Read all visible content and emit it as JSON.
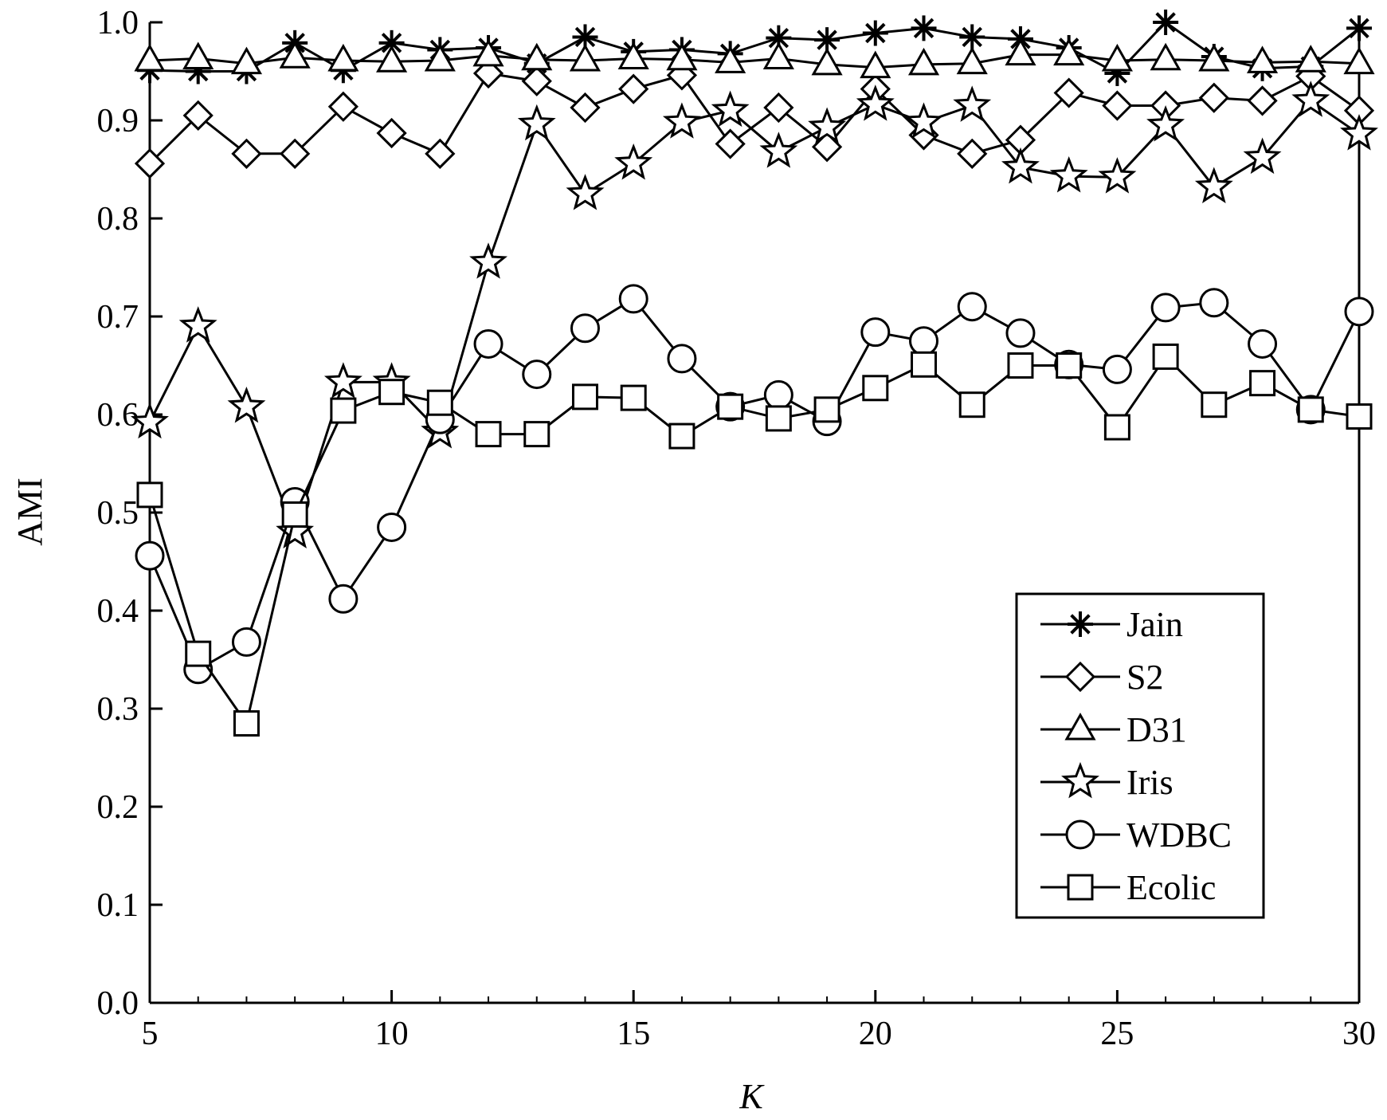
{
  "chart_data": {
    "type": "line",
    "title": "",
    "xlabel": "K",
    "ylabel": "AMI",
    "xlim": [
      5,
      30
    ],
    "ylim": [
      0.0,
      1.0
    ],
    "xticks": [
      "5",
      "10",
      "15",
      "20",
      "25",
      "30"
    ],
    "yticks": [
      "0.0",
      "0.1",
      "0.2",
      "0.3",
      "0.4",
      "0.5",
      "0.6",
      "0.7",
      "0.8",
      "0.9",
      "1.0"
    ],
    "grid": false,
    "legend_position": "lower-right",
    "x": [
      5,
      6,
      7,
      8,
      9,
      10,
      11,
      12,
      13,
      14,
      15,
      16,
      17,
      18,
      19,
      20,
      21,
      22,
      23,
      24,
      25,
      26,
      27,
      28,
      29,
      30
    ],
    "series": [
      {
        "name": "Jain",
        "marker": "asterisk",
        "values": [
          0.951,
          0.95,
          0.95,
          0.979,
          0.951,
          0.979,
          0.972,
          0.974,
          0.958,
          0.985,
          0.97,
          0.972,
          0.968,
          0.984,
          0.982,
          0.989,
          0.994,
          0.985,
          0.983,
          0.974,
          0.948,
          1.0,
          0.965,
          0.953,
          0.955,
          0.994
        ]
      },
      {
        "name": "S2",
        "marker": "diamond",
        "values": [
          0.856,
          0.905,
          0.866,
          0.866,
          0.914,
          0.887,
          0.866,
          0.948,
          0.94,
          0.913,
          0.932,
          0.946,
          0.876,
          0.913,
          0.873,
          0.932,
          0.885,
          0.866,
          0.88,
          0.928,
          0.915,
          0.915,
          0.923,
          0.92,
          0.945,
          0.91
        ]
      },
      {
        "name": "D31",
        "marker": "triangle",
        "values": [
          0.961,
          0.963,
          0.958,
          0.964,
          0.961,
          0.96,
          0.961,
          0.966,
          0.962,
          0.961,
          0.963,
          0.962,
          0.959,
          0.963,
          0.957,
          0.954,
          0.957,
          0.958,
          0.967,
          0.967,
          0.961,
          0.962,
          0.961,
          0.959,
          0.96,
          0.958
        ]
      },
      {
        "name": "Iris",
        "marker": "star",
        "values": [
          0.592,
          0.69,
          0.608,
          0.48,
          0.633,
          0.633,
          0.582,
          0.755,
          0.896,
          0.825,
          0.856,
          0.898,
          0.91,
          0.868,
          0.893,
          0.916,
          0.898,
          0.915,
          0.852,
          0.843,
          0.842,
          0.895,
          0.832,
          0.862,
          0.92,
          0.886
        ]
      },
      {
        "name": "WDBC",
        "marker": "circle",
        "values": [
          0.456,
          0.34,
          0.368,
          0.511,
          0.412,
          0.485,
          0.595,
          0.672,
          0.641,
          0.688,
          0.718,
          0.657,
          0.608,
          0.62,
          0.593,
          0.684,
          0.675,
          0.71,
          0.683,
          0.651,
          0.646,
          0.709,
          0.714,
          0.672,
          0.605,
          0.705
        ]
      },
      {
        "name": "Ecolic",
        "marker": "square",
        "values": [
          0.518,
          0.356,
          0.285,
          0.498,
          0.604,
          0.623,
          0.612,
          0.58,
          0.58,
          0.618,
          0.617,
          0.578,
          0.608,
          0.596,
          0.605,
          0.627,
          0.651,
          0.61,
          0.65,
          0.65,
          0.587,
          0.659,
          0.61,
          0.632,
          0.605,
          0.598
        ]
      }
    ]
  }
}
